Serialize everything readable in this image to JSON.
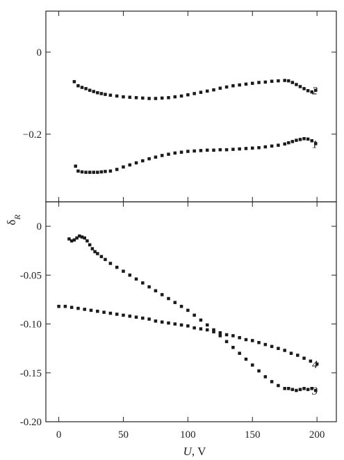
{
  "chart_data": {
    "type": "scatter",
    "ylabel": "δR",
    "xlabel": "U, V",
    "x_ticks": [
      "0",
      "50",
      "100",
      "150",
      "200"
    ],
    "xlim": [
      -10,
      215
    ],
    "marker_color": "#1a1a1a",
    "panels": [
      {
        "id": "top",
        "ylim": [
          -0.365,
          0.1
        ],
        "y_ticks": [
          {
            "value": 0,
            "label": "0"
          },
          {
            "value": -0.2,
            "label": "−0.2"
          }
        ],
        "series": [
          {
            "name": "2",
            "x": [
              12,
              15,
              18,
              21,
              24,
              27,
              30,
              33,
              36,
              40,
              45,
              50,
              55,
              60,
              65,
              70,
              75,
              80,
              85,
              90,
              95,
              100,
              105,
              110,
              115,
              120,
              125,
              130,
              135,
              140,
              145,
              150,
              155,
              160,
              165,
              170,
              175,
              178,
              181,
              184,
              187,
              190,
              193,
              196,
              199
            ],
            "y": [
              -0.072,
              -0.082,
              -0.086,
              -0.089,
              -0.093,
              -0.096,
              -0.099,
              -0.101,
              -0.103,
              -0.105,
              -0.107,
              -0.109,
              -0.11,
              -0.111,
              -0.112,
              -0.113,
              -0.113,
              -0.112,
              -0.111,
              -0.109,
              -0.107,
              -0.104,
              -0.101,
              -0.098,
              -0.095,
              -0.092,
              -0.088,
              -0.085,
              -0.082,
              -0.08,
              -0.078,
              -0.076,
              -0.074,
              -0.073,
              -0.071,
              -0.07,
              -0.069,
              -0.07,
              -0.074,
              -0.079,
              -0.084,
              -0.089,
              -0.094,
              -0.097,
              -0.093
            ]
          },
          {
            "name": "1",
            "x": [
              13,
              15,
              18,
              21,
              24,
              27,
              30,
              33,
              36,
              40,
              45,
              50,
              55,
              60,
              65,
              70,
              75,
              80,
              85,
              90,
              95,
              100,
              105,
              110,
              115,
              120,
              125,
              130,
              135,
              140,
              145,
              150,
              155,
              160,
              165,
              170,
              175,
              178,
              181,
              184,
              187,
              190,
              193,
              196,
              199
            ],
            "y": [
              -0.278,
              -0.29,
              -0.292,
              -0.293,
              -0.293,
              -0.293,
              -0.293,
              -0.292,
              -0.291,
              -0.29,
              -0.286,
              -0.28,
              -0.275,
              -0.27,
              -0.265,
              -0.26,
              -0.256,
              -0.252,
              -0.249,
              -0.246,
              -0.244,
              -0.242,
              -0.241,
              -0.24,
              -0.239,
              -0.239,
              -0.238,
              -0.238,
              -0.237,
              -0.236,
              -0.235,
              -0.234,
              -0.233,
              -0.231,
              -0.229,
              -0.227,
              -0.224,
              -0.221,
              -0.218,
              -0.215,
              -0.213,
              -0.211,
              -0.212,
              -0.216,
              -0.223
            ]
          }
        ]
      },
      {
        "id": "bottom",
        "ylim": [
          -0.2,
          0.025
        ],
        "y_ticks": [
          {
            "value": 0,
            "label": "0"
          },
          {
            "value": -0.05,
            "label": "-0.05"
          },
          {
            "value": -0.1,
            "label": "-0.10"
          },
          {
            "value": -0.15,
            "label": "-0.15"
          },
          {
            "value": -0.2,
            "label": "-0.20"
          }
        ],
        "series": [
          {
            "name": "3",
            "x": [
              8,
              10,
              12,
              14,
              16,
              18,
              20,
              22,
              24,
              26,
              28,
              30,
              33,
              36,
              40,
              45,
              50,
              55,
              60,
              65,
              70,
              75,
              80,
              85,
              90,
              95,
              100,
              105,
              110,
              115,
              120,
              125,
              130,
              135,
              140,
              145,
              150,
              155,
              160,
              165,
              170,
              175,
              178,
              181,
              184,
              187,
              190,
              193,
              196,
              199
            ],
            "y": [
              -0.013,
              -0.015,
              -0.014,
              -0.012,
              -0.01,
              -0.011,
              -0.012,
              -0.015,
              -0.019,
              -0.023,
              -0.026,
              -0.028,
              -0.031,
              -0.034,
              -0.038,
              -0.042,
              -0.046,
              -0.05,
              -0.054,
              -0.058,
              -0.062,
              -0.066,
              -0.07,
              -0.074,
              -0.078,
              -0.082,
              -0.086,
              -0.091,
              -0.096,
              -0.101,
              -0.106,
              -0.112,
              -0.118,
              -0.124,
              -0.13,
              -0.136,
              -0.142,
              -0.148,
              -0.154,
              -0.159,
              -0.163,
              -0.166,
              -0.166,
              -0.167,
              -0.168,
              -0.167,
              -0.166,
              -0.167,
              -0.166,
              -0.168
            ]
          },
          {
            "name": "4",
            "x": [
              0,
              5,
              10,
              15,
              20,
              25,
              30,
              35,
              40,
              45,
              50,
              55,
              60,
              65,
              70,
              75,
              80,
              85,
              90,
              95,
              100,
              105,
              110,
              115,
              120,
              125,
              130,
              135,
              140,
              145,
              150,
              155,
              160,
              165,
              170,
              175,
              180,
              185,
              190,
              195,
              200
            ],
            "y": [
              -0.082,
              -0.082,
              -0.083,
              -0.084,
              -0.085,
              -0.086,
              -0.087,
              -0.088,
              -0.089,
              -0.09,
              -0.091,
              -0.092,
              -0.093,
              -0.094,
              -0.095,
              -0.097,
              -0.098,
              -0.099,
              -0.1,
              -0.101,
              -0.102,
              -0.104,
              -0.105,
              -0.106,
              -0.108,
              -0.109,
              -0.111,
              -0.112,
              -0.114,
              -0.116,
              -0.117,
              -0.119,
              -0.121,
              -0.123,
              -0.125,
              -0.127,
              -0.13,
              -0.132,
              -0.135,
              -0.138,
              -0.141
            ]
          }
        ]
      }
    ]
  }
}
